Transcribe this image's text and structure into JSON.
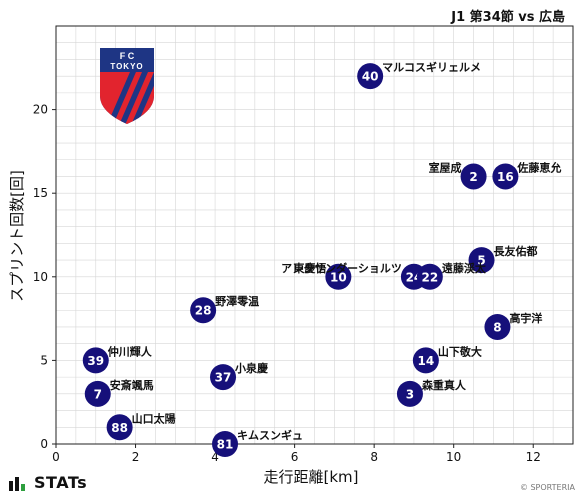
{
  "header": {
    "title": "J1 第34節 vs 広島"
  },
  "brand": {
    "team_logo_text_top": "F C",
    "team_logo_text_mid": "TOKYO",
    "stats_logo": "STATs",
    "credit": "© SPORTERIA"
  },
  "colors": {
    "marker": "#16107a",
    "marker_text": "#ffffff",
    "grid": "#d6d6d6",
    "logo_red": "#e2242e",
    "logo_navy": "#1e3584"
  },
  "chart_data": {
    "type": "scatter",
    "xlabel": "走行距離[km]",
    "ylabel": "スプリント回数[回]",
    "xlim": [
      0,
      13
    ],
    "ylim": [
      0,
      25
    ],
    "xticks": [
      0,
      2,
      4,
      6,
      8,
      10,
      12
    ],
    "yticks": [
      0,
      5,
      10,
      15,
      20
    ],
    "grid": true,
    "points": [
      {
        "number": "40",
        "name": "マルコスギリェルメ",
        "x": 7.9,
        "y": 22,
        "label_side": "right"
      },
      {
        "number": "2",
        "name": "室屋成",
        "x": 10.5,
        "y": 16,
        "label_side": "left"
      },
      {
        "number": "16",
        "name": "佐藤恵允",
        "x": 11.3,
        "y": 16,
        "label_side": "right"
      },
      {
        "number": "5",
        "name": "長友佑都",
        "x": 10.7,
        "y": 11,
        "label_side": "right"
      },
      {
        "number": "10",
        "name": "東慶悟",
        "x": 7.1,
        "y": 10,
        "label_side": "left"
      },
      {
        "number": "24",
        "name": "アレクサンダーショルツ",
        "x": 9.0,
        "y": 10,
        "label_side": "left"
      },
      {
        "number": "22",
        "name": "遠藤渓太",
        "x": 9.4,
        "y": 10,
        "label_side": "right"
      },
      {
        "number": "28",
        "name": "野澤零温",
        "x": 3.7,
        "y": 8,
        "label_side": "right"
      },
      {
        "number": "8",
        "name": "高宇洋",
        "x": 11.1,
        "y": 7,
        "label_side": "right"
      },
      {
        "number": "39",
        "name": "仲川輝人",
        "x": 1.0,
        "y": 5,
        "label_side": "right"
      },
      {
        "number": "14",
        "name": "山下敬大",
        "x": 9.3,
        "y": 5,
        "label_side": "right"
      },
      {
        "number": "37",
        "name": "小泉慶",
        "x": 4.2,
        "y": 4,
        "label_side": "right"
      },
      {
        "number": "7",
        "name": "安斎颯馬",
        "x": 1.05,
        "y": 3,
        "label_side": "right"
      },
      {
        "number": "3",
        "name": "森重真人",
        "x": 8.9,
        "y": 3,
        "label_side": "right"
      },
      {
        "number": "88",
        "name": "山口太陽",
        "x": 1.6,
        "y": 1,
        "label_side": "right"
      },
      {
        "number": "81",
        "name": "キムスンギュ",
        "x": 4.25,
        "y": 0,
        "label_side": "right"
      }
    ]
  }
}
